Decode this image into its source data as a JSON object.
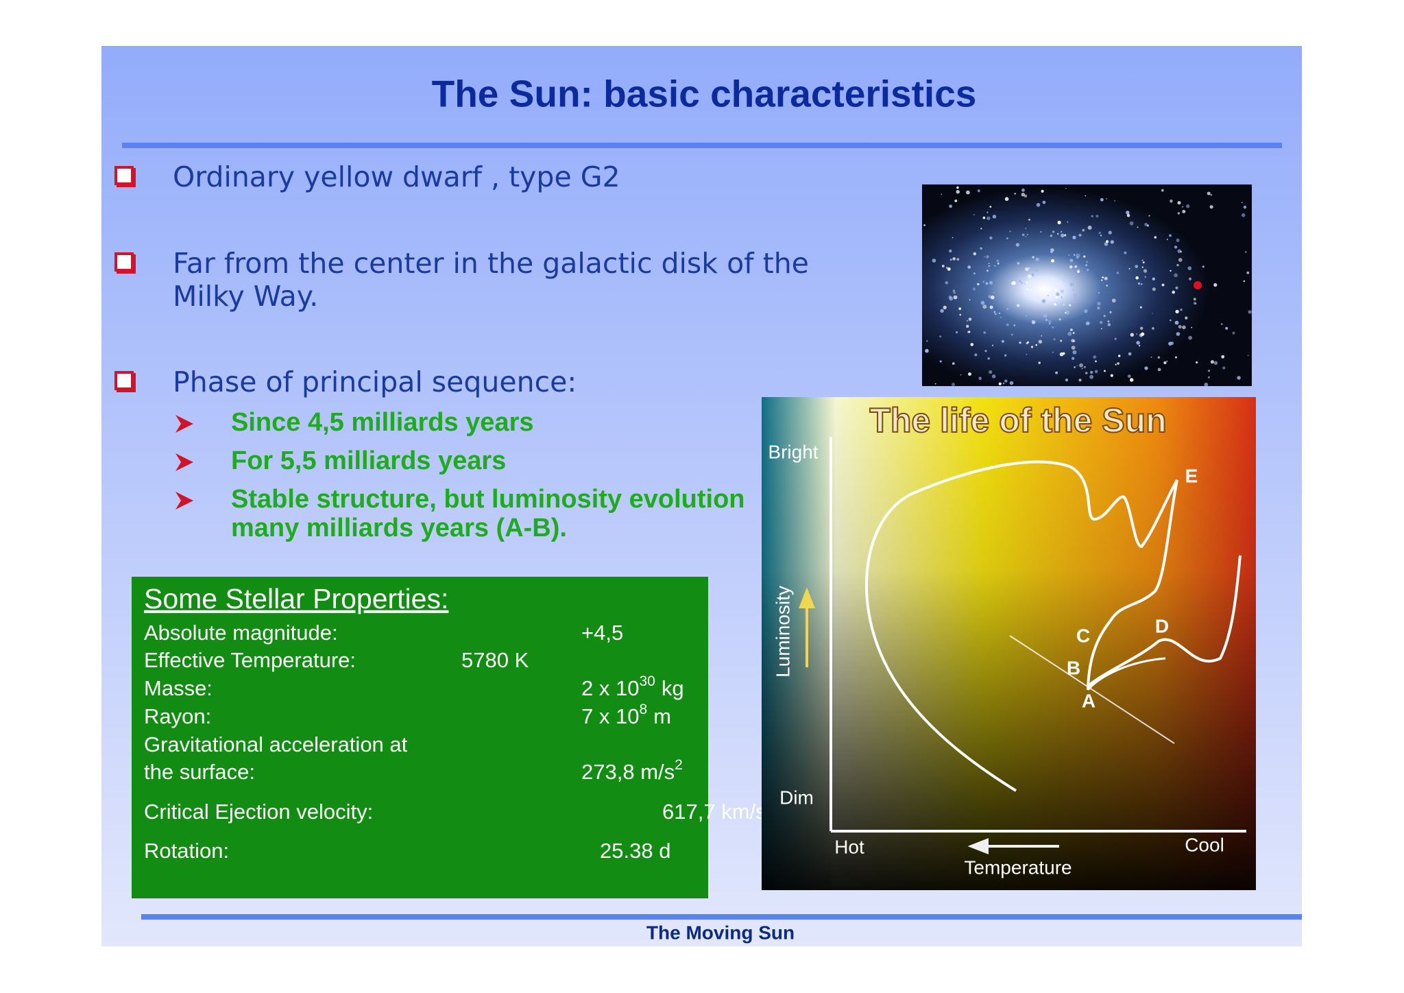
{
  "slide": {
    "title": "The Sun: basic characteristics",
    "bullets": [
      [
        "Ordinary yellow dwarf , type G2"
      ],
      [
        "Far from the center in the galactic disk of the",
        "Milky Way."
      ],
      [
        "Phase of principal sequence:"
      ]
    ],
    "sub_bullets": [
      [
        "Since 4,5 milliards years"
      ],
      [
        "For 5,5 milliards years"
      ],
      [
        "Stable structure, but luminosity evolution",
        "many milliards years (A-B)."
      ]
    ],
    "properties": {
      "heading": "Some Stellar Properties:",
      "rows": [
        {
          "label": [
            "Absolute magnitude:"
          ],
          "value": {
            "base": "+4,5"
          }
        },
        {
          "label": [
            "Effective Temperature:"
          ],
          "value": {
            "base": "5780 K"
          }
        },
        {
          "label": [
            "Masse:"
          ],
          "value": {
            "base": "2 x 10",
            "sup": "30",
            "unit": "kg"
          }
        },
        {
          "label": [
            "Rayon:"
          ],
          "value": {
            "base": "7 x 10",
            "sup": "8",
            "unit": "m"
          }
        },
        {
          "label": [
            "Gravitational acceleration at",
            "the surface:"
          ],
          "value": {
            "base": "273,8 m/s",
            "sup": "2"
          }
        },
        {
          "label": [
            "Critical Ejection velocity:"
          ],
          "value": {
            "base": "617,7 km/s"
          }
        },
        {
          "label": [
            "Rotation:"
          ],
          "value": {
            "base": "25.38 d"
          }
        }
      ]
    },
    "diagram": {
      "title": "The life of the Sun",
      "y_axis": "Luminosity",
      "y_top": "Bright",
      "y_bottom": "Dim",
      "x_axis": "Temperature",
      "x_left": "Hot",
      "x_right": "Cool",
      "points": [
        "A",
        "B",
        "C",
        "D",
        "E"
      ]
    },
    "footer": "The Moving Sun"
  }
}
